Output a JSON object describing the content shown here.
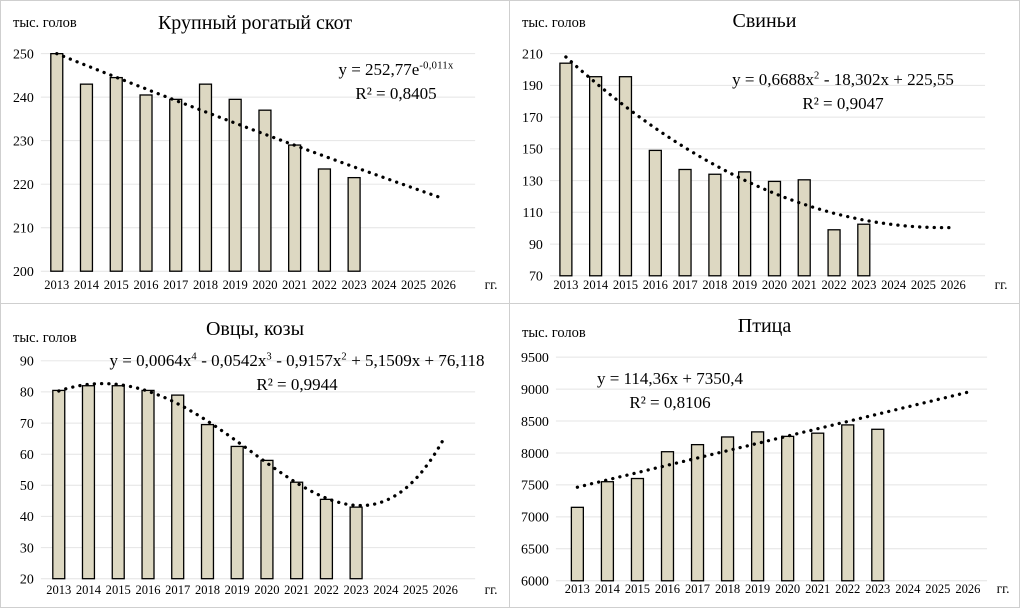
{
  "x_axis": {
    "categories": [
      "2013",
      "2014",
      "2015",
      "2016",
      "2017",
      "2018",
      "2019",
      "2020",
      "2021",
      "2022",
      "2023",
      "2024",
      "2025",
      "2026"
    ],
    "label": "гг."
  },
  "chart_data": [
    {
      "type": "bar",
      "title": "Крупный рогатый скот",
      "ylabel": "тыс. голов",
      "xlabel": "гг.",
      "categories": [
        "2013",
        "2014",
        "2015",
        "2016",
        "2017",
        "2018",
        "2019",
        "2020",
        "2021",
        "2022",
        "2023"
      ],
      "values": [
        250,
        243,
        244.5,
        240.5,
        239.5,
        243,
        239.5,
        237,
        229,
        223.5,
        221.5
      ],
      "ylim": [
        200,
        250
      ],
      "ystep": 10,
      "yticks": [
        "200",
        "210",
        "220",
        "230",
        "240",
        "250"
      ],
      "grid": true,
      "equation_runs": [
        {
          "t": "y = 252,77e"
        },
        {
          "t": "-0,011x",
          "sup": true
        }
      ],
      "r2": "R² = 0,8405",
      "trendline": {
        "kind": "exp",
        "a": 252.77,
        "b": -0.011,
        "x_range": [
          1,
          14
        ]
      },
      "bar_color": "#ddd8c2"
    },
    {
      "type": "bar",
      "title": "Свиньи",
      "ylabel": "тыс. голов",
      "xlabel": "гг.",
      "categories": [
        "2013",
        "2014",
        "2015",
        "2016",
        "2017",
        "2018",
        "2019",
        "2020",
        "2021",
        "2022",
        "2023"
      ],
      "values": [
        204,
        195.5,
        195.5,
        149,
        137,
        134,
        135.5,
        129.5,
        130.5,
        99,
        102.5
      ],
      "ylim": [
        70,
        210
      ],
      "ystep": 20,
      "yticks": [
        "70",
        "90",
        "110",
        "130",
        "150",
        "170",
        "190",
        "210"
      ],
      "grid": true,
      "equation_runs": [
        {
          "t": "y = 0,6688x"
        },
        {
          "t": "2",
          "sup": true
        },
        {
          "t": " - 18,302x + 225,55"
        }
      ],
      "r2": "R² = 0,9047",
      "trendline": {
        "kind": "poly",
        "coeffs": [
          0.6688,
          -18.302,
          225.55
        ],
        "x_range": [
          1,
          14
        ]
      },
      "bar_color": "#ddd8c2"
    },
    {
      "type": "bar",
      "title": "Овцы, козы",
      "ylabel": "тыс. голов",
      "xlabel": "гг.",
      "categories": [
        "2013",
        "2014",
        "2015",
        "2016",
        "2017",
        "2018",
        "2019",
        "2020",
        "2021",
        "2022",
        "2023"
      ],
      "values": [
        80.5,
        82,
        82,
        80.5,
        79,
        69.5,
        62.5,
        58,
        51,
        45.5,
        43
      ],
      "ylim": [
        20,
        90
      ],
      "ystep": 10,
      "yticks": [
        "20",
        "30",
        "40",
        "50",
        "60",
        "70",
        "80",
        "90"
      ],
      "grid": true,
      "equation_runs": [
        {
          "t": "y = 0,0064x"
        },
        {
          "t": "4",
          "sup": true
        },
        {
          "t": " - 0,0542x"
        },
        {
          "t": "3",
          "sup": true
        },
        {
          "t": " - 0,9157x"
        },
        {
          "t": "2",
          "sup": true
        },
        {
          "t": " + 5,1509x + 76,118"
        }
      ],
      "r2": "R² = 0,9944",
      "trendline": {
        "kind": "poly",
        "coeffs": [
          0.0064,
          -0.0542,
          -0.9157,
          5.1509,
          76.118
        ],
        "x_range": [
          1,
          14
        ]
      },
      "bar_color": "#ddd8c2"
    },
    {
      "type": "bar",
      "title": "Птица",
      "ylabel": "тыс. голов",
      "xlabel": "гг.",
      "categories": [
        "2013",
        "2014",
        "2015",
        "2016",
        "2017",
        "2018",
        "2019",
        "2020",
        "2021",
        "2022",
        "2023"
      ],
      "values": [
        7150,
        7550,
        7600,
        8020,
        8130,
        8250,
        8330,
        8260,
        8310,
        8440,
        8370
      ],
      "ylim": [
        6000,
        9500
      ],
      "ystep": 500,
      "yticks": [
        "6000",
        "6500",
        "7000",
        "7500",
        "8000",
        "8500",
        "9000",
        "9500"
      ],
      "grid": true,
      "equation_runs": [
        {
          "t": "y = 114,36x + 7350,4"
        }
      ],
      "r2": "R² = 0,8106",
      "trendline": {
        "kind": "poly",
        "coeffs": [
          114.36,
          7350.4
        ],
        "x_range": [
          1,
          14
        ]
      },
      "bar_color": "#ddd8c2"
    }
  ],
  "colors": {
    "bar_fill": "#ddd8c2",
    "bar_border": "#000000",
    "gridline": "#e4e4e4",
    "divider": "#cfcfcf",
    "trend": "#000000"
  }
}
